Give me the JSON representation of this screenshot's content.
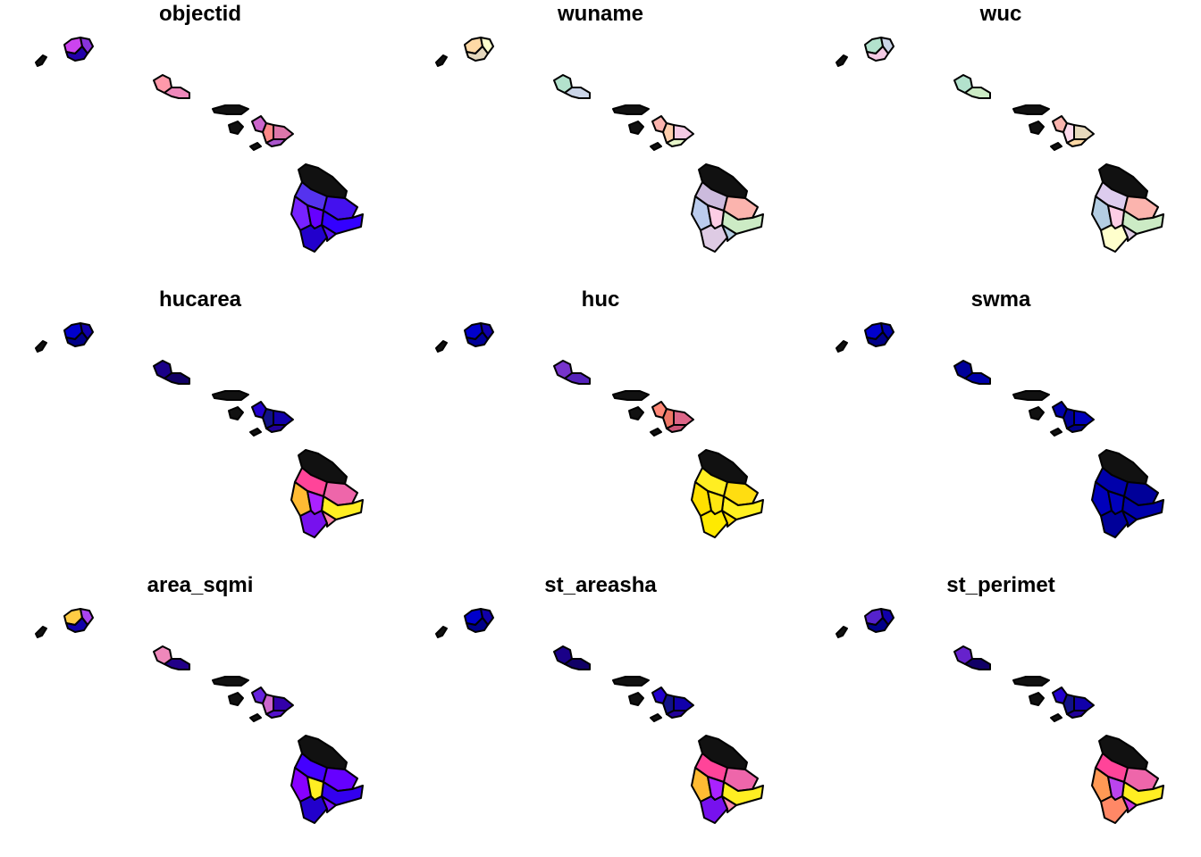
{
  "figure": {
    "panels": [
      {
        "title": "objectid",
        "colors": {
          "bigN": "#111111",
          "bigA": "#5533ee",
          "bigB": "#7722ff",
          "bigC": "#4411ee",
          "bigD": "#3300ff",
          "bigE": "#6600ff",
          "bigF": "#2200cc",
          "bigG": "#5511ee",
          "maui1": "#cc66cc",
          "maui2": "#ff8888",
          "maui3": "#dd77aa",
          "maui4": "#aa55cc",
          "oahu1": "#ff99aa",
          "oahu2": "#ee88bb",
          "kauai1": "#cc44ee",
          "kauai2": "#8833dd",
          "kauai3": "#2200aa",
          "other": "#111111"
        }
      },
      {
        "title": "wuname",
        "colors": {
          "bigN": "#111111",
          "bigA": "#ccbbdd",
          "bigB": "#bbccee",
          "bigC": "#fbb4ae",
          "bigD": "#ccebc5",
          "bigE": "#fccde5",
          "bigF": "#decbe4",
          "bigG": "#b3cde3",
          "maui1": "#fbb4ae",
          "maui2": "#fdcdac",
          "maui3": "#f4cae4",
          "maui4": "#e6f5c9",
          "oahu1": "#b3e2cd",
          "oahu2": "#cbd5e8",
          "kauai1": "#fed9a6",
          "kauai2": "#ffffcc",
          "kauai3": "#e5d8bd",
          "other": "#111111"
        }
      },
      {
        "title": "wuc",
        "colors": {
          "bigN": "#111111",
          "bigA": "#ddccee",
          "bigB": "#b3cde3",
          "bigC": "#fbb4ae",
          "bigD": "#ccebc5",
          "bigE": "#fccde5",
          "bigF": "#ffffcc",
          "bigG": "#decbe4",
          "maui1": "#fbb4ae",
          "maui2": "#fddaec",
          "maui3": "#e5d8bd",
          "maui4": "#fed9a6",
          "oahu1": "#b3e2cd",
          "oahu2": "#ccebc5",
          "kauai1": "#b3e2cd",
          "kauai2": "#cbd5e8",
          "kauai3": "#f4cae4",
          "other": "#111111"
        }
      },
      {
        "title": "hucarea",
        "colors": {
          "bigN": "#111111",
          "bigA": "#ff4499",
          "bigB": "#ffbb33",
          "bigC": "#ee66aa",
          "bigD": "#ffee22",
          "bigE": "#aa22ff",
          "bigF": "#7711ee",
          "bigG": "#ff88aa",
          "maui1": "#2200cc",
          "maui2": "#111188",
          "maui3": "#1100aa",
          "maui4": "#220099",
          "oahu1": "#1a0088",
          "oahu2": "#110066",
          "kauai1": "#0000cc",
          "kauai2": "#1100aa",
          "kauai3": "#000088",
          "other": "#111111"
        }
      },
      {
        "title": "huc",
        "colors": {
          "bigN": "#111111",
          "bigA": "#ffee22",
          "bigB": "#ffe000",
          "bigC": "#ffdd11",
          "bigD": "#fff020",
          "bigE": "#ffe611",
          "bigF": "#ffea00",
          "bigG": "#ffdd00",
          "maui1": "#ff8877",
          "maui2": "#ee7766",
          "maui3": "#dd6688",
          "maui4": "#cc5577",
          "oahu1": "#7733cc",
          "oahu2": "#5522bb",
          "kauai1": "#0000cc",
          "kauai2": "#1100aa",
          "kauai3": "#000099",
          "other": "#111111"
        }
      },
      {
        "title": "swma",
        "colors": {
          "bigN": "#111111",
          "bigA": "#0000aa",
          "bigB": "#0000bb",
          "bigC": "#000099",
          "bigD": "#0000aa",
          "bigE": "#0000bb",
          "bigF": "#000099",
          "bigG": "#0000aa",
          "maui1": "#0000aa",
          "maui2": "#000099",
          "maui3": "#0000bb",
          "maui4": "#000088",
          "oahu1": "#000099",
          "oahu2": "#0000aa",
          "kauai1": "#0000cc",
          "kauai2": "#0000aa",
          "kauai3": "#000088",
          "other": "#111111"
        }
      },
      {
        "title": "area_sqmi",
        "colors": {
          "bigN": "#111111",
          "bigA": "#4400ff",
          "bigB": "#8800ff",
          "bigC": "#6600ff",
          "bigD": "#3300ee",
          "bigE": "#ffee22",
          "bigF": "#2200cc",
          "bigG": "#7711ff",
          "maui1": "#6622dd",
          "maui2": "#cc66cc",
          "maui3": "#3300aa",
          "maui4": "#5511cc",
          "oahu1": "#ee88bb",
          "oahu2": "#220088",
          "kauai1": "#ffcc44",
          "kauai2": "#aa44ee",
          "kauai3": "#1100aa",
          "other": "#111111"
        }
      },
      {
        "title": "st_areasha",
        "colors": {
          "bigN": "#111111",
          "bigA": "#ff4499",
          "bigB": "#ffbb33",
          "bigC": "#ee66aa",
          "bigD": "#ffee22",
          "bigE": "#aa22ff",
          "bigF": "#7711ee",
          "bigG": "#ff88aa",
          "maui1": "#2200cc",
          "maui2": "#111188",
          "maui3": "#1100aa",
          "maui4": "#220099",
          "oahu1": "#1a0088",
          "oahu2": "#110066",
          "kauai1": "#0000cc",
          "kauai2": "#1100aa",
          "kauai3": "#000088",
          "other": "#111111"
        }
      },
      {
        "title": "st_perimet",
        "colors": {
          "bigN": "#111111",
          "bigA": "#ff4499",
          "bigB": "#ff9955",
          "bigC": "#ee66aa",
          "bigD": "#ffee22",
          "bigE": "#bb44ee",
          "bigF": "#ff8866",
          "bigG": "#cc33dd",
          "maui1": "#2200cc",
          "maui2": "#111188",
          "maui3": "#1100aa",
          "maui4": "#220099",
          "oahu1": "#6622cc",
          "oahu2": "#110066",
          "kauai1": "#5522cc",
          "kauai2": "#1100aa",
          "kauai3": "#000088",
          "other": "#111111"
        }
      }
    ]
  }
}
